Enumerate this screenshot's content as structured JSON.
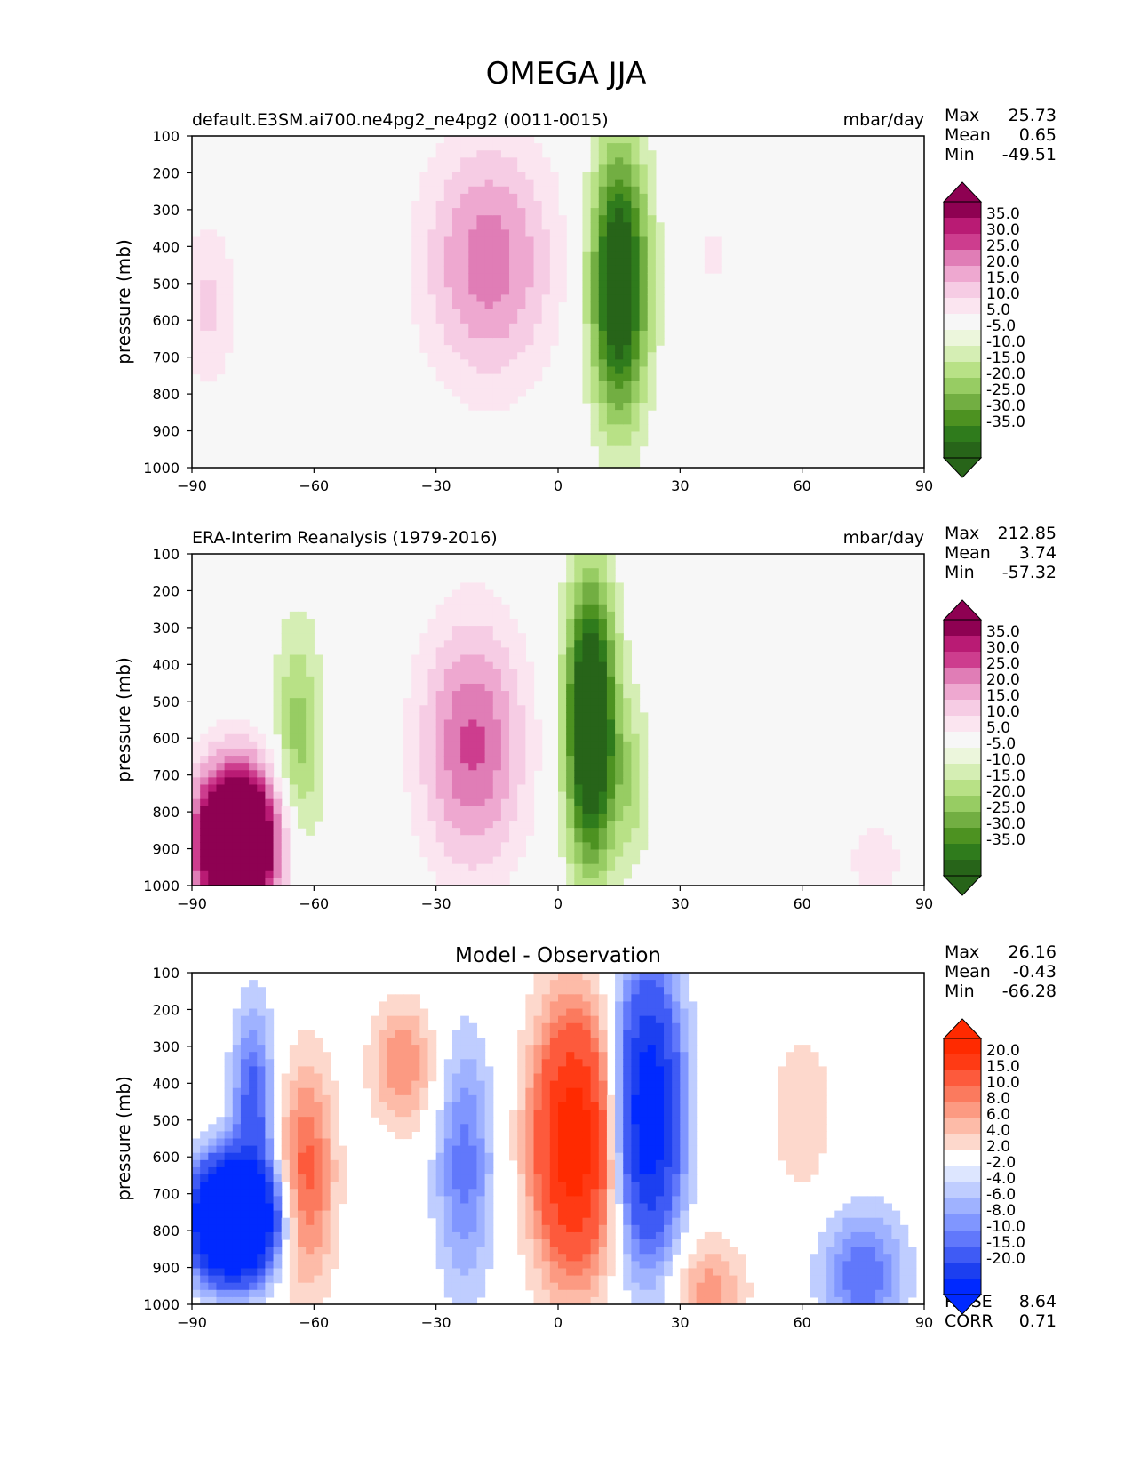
{
  "title": "OMEGA JJA",
  "chart_data": [
    {
      "type": "heatmap",
      "panel": "test",
      "title_left": "default.E3SM.ai700.ne4pg2_ne4pg2 (0011-0015)",
      "title_center": "",
      "units": "mbar/day",
      "ylabel": "pressure (mb)",
      "xlabel": "",
      "xlim": [
        -90,
        90
      ],
      "ylim": [
        1000,
        100
      ],
      "x_ticks": [
        "−90",
        "−60",
        "−30",
        "0",
        "30",
        "60",
        "90"
      ],
      "y_ticks": [
        "100",
        "200",
        "300",
        "400",
        "500",
        "600",
        "700",
        "800",
        "900",
        "1000"
      ],
      "stats": [
        {
          "label": "Max",
          "value": "25.73"
        },
        {
          "label": "Mean",
          "value": "0.65"
        },
        {
          "label": "Min",
          "value": "-49.51"
        }
      ],
      "extra_stats": [],
      "colorbar": {
        "labels": [
          "35.0",
          "30.0",
          "25.0",
          "20.0",
          "15.0",
          "10.0",
          "5.0",
          "-5.0",
          "-10.0",
          "-15.0",
          "-20.0",
          "-25.0",
          "-30.0",
          "-35.0"
        ],
        "colors": [
          "#8e0152",
          "#b91b74",
          "#cd3d8e",
          "#e07db6",
          "#eea8d0",
          "#f6cce4",
          "#fbe5f0",
          "#f7f7f7",
          "#ecf6dc",
          "#d5eeb4",
          "#b8e186",
          "#97cc63",
          "#72ae42",
          "#4d9221",
          "#2f7b1c",
          "#276419"
        ]
      },
      "features": [
        {
          "name": "south-pole-subsidence",
          "lat": -86,
          "p": 560,
          "value": 12
        },
        {
          "name": "southern-subtropical-descent",
          "lat": -17,
          "p": 420,
          "value": 25.73
        },
        {
          "name": "itcz-ascent",
          "lat": 15,
          "p": 500,
          "value": -49.51
        },
        {
          "name": "weak-descent-40N",
          "lat": 38,
          "p": 420,
          "value": 6
        }
      ]
    },
    {
      "type": "heatmap",
      "panel": "reference",
      "title_left": "ERA-Interim Reanalysis (1979-2016)",
      "title_center": "",
      "units": "mbar/day",
      "ylabel": "pressure (mb)",
      "xlabel": "",
      "xlim": [
        -90,
        90
      ],
      "ylim": [
        1000,
        100
      ],
      "x_ticks": [
        "−90",
        "−60",
        "−30",
        "0",
        "30",
        "60",
        "90"
      ],
      "y_ticks": [
        "100",
        "200",
        "300",
        "400",
        "500",
        "600",
        "700",
        "800",
        "900",
        "1000"
      ],
      "stats": [
        {
          "label": "Max",
          "value": "212.85"
        },
        {
          "label": "Mean",
          "value": "3.74"
        },
        {
          "label": "Min",
          "value": "-57.32"
        }
      ],
      "extra_stats": [],
      "colorbar": {
        "labels": [
          "35.0",
          "30.0",
          "25.0",
          "20.0",
          "15.0",
          "10.0",
          "5.0",
          "-5.0",
          "-10.0",
          "-15.0",
          "-20.0",
          "-25.0",
          "-30.0",
          "-35.0"
        ],
        "colors": [
          "#8e0152",
          "#b91b74",
          "#cd3d8e",
          "#e07db6",
          "#eea8d0",
          "#f6cce4",
          "#fbe5f0",
          "#f7f7f7",
          "#ecf6dc",
          "#d5eeb4",
          "#b8e186",
          "#97cc63",
          "#72ae42",
          "#4d9221",
          "#2f7b1c",
          "#276419"
        ]
      },
      "features": [
        {
          "name": "antarctic-strong-descent",
          "lat": -79,
          "p": 850,
          "value": 212.85
        },
        {
          "name": "southern-ascent-band",
          "lat": -65,
          "p": 650,
          "value": -18
        },
        {
          "name": "southern-subtropical-descent",
          "lat": -21,
          "p": 620,
          "value": 26
        },
        {
          "name": "itcz-ascent",
          "lat": 8,
          "p": 550,
          "value": -57.32
        },
        {
          "name": "weak-descent-high-lat",
          "lat": 77,
          "p": 900,
          "value": 8
        }
      ]
    },
    {
      "type": "heatmap",
      "panel": "difference",
      "title_left": "",
      "title_center": "Model - Observation",
      "units": "",
      "ylabel": "pressure (mb)",
      "xlabel": "",
      "xlim": [
        -90,
        90
      ],
      "ylim": [
        1000,
        100
      ],
      "x_ticks": [
        "−90",
        "−60",
        "−30",
        "0",
        "30",
        "60",
        "90"
      ],
      "y_ticks": [
        "100",
        "200",
        "300",
        "400",
        "500",
        "600",
        "700",
        "800",
        "900",
        "1000"
      ],
      "stats": [
        {
          "label": "Max",
          "value": "26.16"
        },
        {
          "label": "Mean",
          "value": "-0.43"
        },
        {
          "label": "Min",
          "value": "-66.28"
        }
      ],
      "extra_stats": [
        {
          "label": "RMSE",
          "value": "8.64"
        },
        {
          "label": "CORR",
          "value": "0.71"
        }
      ],
      "colorbar": {
        "labels": [
          "20.0",
          "15.0",
          "10.0",
          "8.0",
          "6.0",
          "4.0",
          "2.0",
          "-2.0",
          "-4.0",
          "-6.0",
          "-8.0",
          "-10.0",
          "-15.0",
          "-20.0"
        ],
        "colors": [
          "#ff2a00",
          "#ff3a14",
          "#fd5a3c",
          "#fb7a5e",
          "#fc9a82",
          "#fdbba8",
          "#fdd8cc",
          "#ffffff",
          "#dde6ff",
          "#bfcdff",
          "#9fb2ff",
          "#8096ff",
          "#6178fb",
          "#3f5bf5",
          "#1c3ff0",
          "#0029ff"
        ]
      },
      "features": [
        {
          "name": "antarctic-negative",
          "lat": -80,
          "p": 770,
          "value": -66.28
        },
        {
          "name": "positive-60S",
          "lat": -63,
          "p": 650,
          "value": 10
        },
        {
          "name": "equatorial-positive",
          "lat": 5,
          "p": 560,
          "value": 26.16
        },
        {
          "name": "negative-15N",
          "lat": 20,
          "p": 480,
          "value": -25
        },
        {
          "name": "negative-high-north",
          "lat": 75,
          "p": 920,
          "value": -10
        }
      ]
    }
  ]
}
